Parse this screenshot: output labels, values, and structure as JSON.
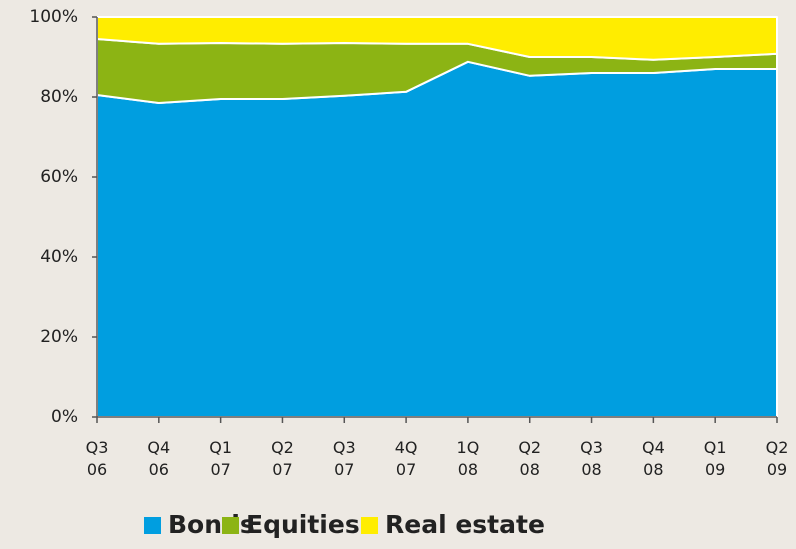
{
  "chart_data": {
    "type": "stacked_area",
    "categories": [
      "Q3\n06",
      "Q4\n06",
      "Q1\n07",
      "Q2\n07",
      "Q3\n07",
      "4Q\n07",
      "1Q\n08",
      "Q2\n08",
      "Q3\n08",
      "Q4\n08",
      "Q1\n09",
      "Q2\n09"
    ],
    "series": [
      {
        "name": "Bonds",
        "color": "#009ee0",
        "values": [
          80.5,
          78.5,
          79.5,
          79.5,
          80.3,
          81.3,
          88.8,
          85.3,
          86,
          86,
          87,
          87
        ]
      },
      {
        "name": "Equities",
        "color": "#8cb414",
        "values": [
          14,
          14.8,
          14,
          13.8,
          13.2,
          12,
          4.5,
          4.7,
          4,
          3.3,
          3,
          3.8
        ]
      },
      {
        "name": "Real estate",
        "color": "#ffed00",
        "values": [
          5.5,
          6.7,
          6.5,
          6.7,
          6.5,
          6.7,
          6.7,
          10,
          10,
          10.7,
          10,
          9.2
        ]
      }
    ],
    "ylim": [
      0,
      100
    ],
    "yticks": [
      {
        "value": 0,
        "label": "0%"
      },
      {
        "value": 20,
        "label": "20%"
      },
      {
        "value": 40,
        "label": "40%"
      },
      {
        "value": 60,
        "label": "60%"
      },
      {
        "value": 80,
        "label": "80%"
      },
      {
        "value": 100,
        "label": "100%"
      }
    ],
    "legend": "bottom"
  }
}
